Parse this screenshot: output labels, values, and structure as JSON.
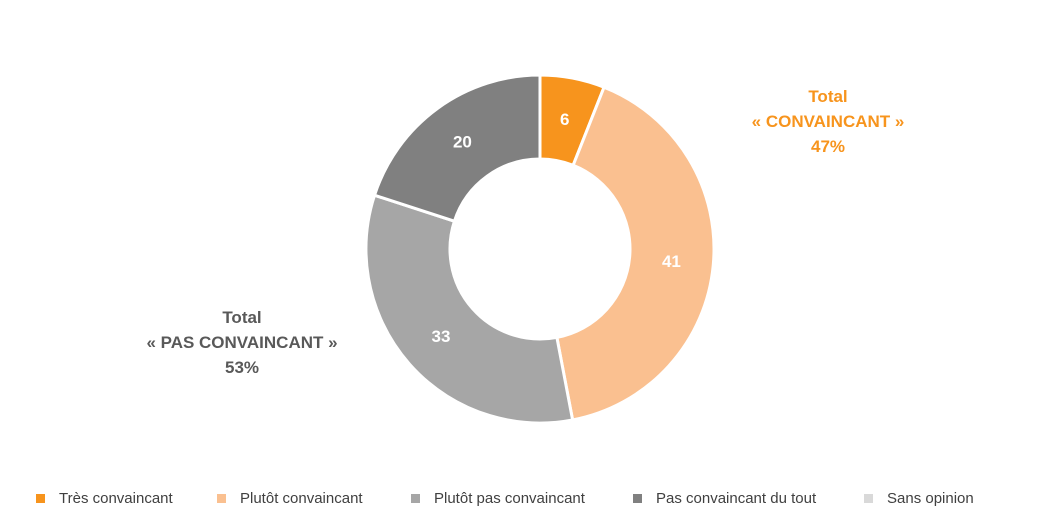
{
  "chart_data": {
    "type": "pie",
    "variant": "donut",
    "title": "",
    "slices": [
      {
        "name": "Très convaincant",
        "value": 6,
        "label": "6",
        "color": "#F7941D"
      },
      {
        "name": "Plutôt convaincant",
        "value": 41,
        "label": "41",
        "color": "#FAC090"
      },
      {
        "name": "Plutôt pas convaincant",
        "value": 33,
        "label": "33",
        "color": "#A6A6A6"
      },
      {
        "name": "Pas convaincant du tout",
        "value": 20,
        "label": "20",
        "color": "#808080"
      },
      {
        "name": "Sans opinion",
        "value": 0,
        "label": "",
        "color": "#D9D9D9"
      }
    ],
    "legend": {
      "placement": "bottom",
      "entries": [
        "Très convaincant",
        "Plutôt convaincant",
        "Plutôt pas convaincant",
        "Pas convaincant du tout",
        "Sans opinion"
      ]
    },
    "annotations": {
      "convaincant": {
        "line1": "Total",
        "line2": "« CONVAINCANT »",
        "line3": "47%",
        "value": 47,
        "color": "#F7941D"
      },
      "pas_convaincant": {
        "line1": "Total",
        "line2": "« PAS CONVAINCANT »",
        "line3": "53%",
        "value": 53,
        "color": "#595959"
      }
    }
  }
}
